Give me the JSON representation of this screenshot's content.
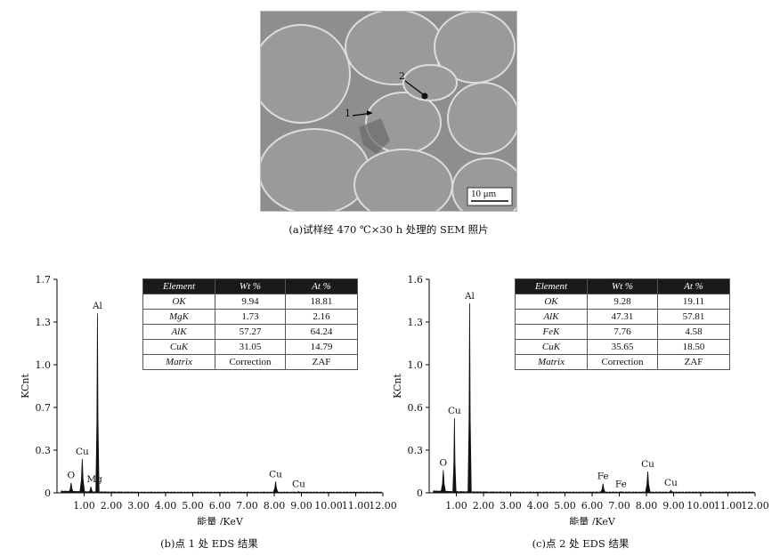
{
  "sem": {
    "scale_bar": "10 μm",
    "marker_1": "1",
    "marker_2": "2",
    "caption": "(a)试样经 470 ℃×30 h 处理的 SEM 照片"
  },
  "chart_data": [
    {
      "type": "line",
      "panel": "b",
      "caption": "(b)点 1 处 EDS 结果",
      "xlabel": "能量 /KeV",
      "ylabel": "KCnt",
      "xlim": [
        0,
        12
      ],
      "ylim": [
        0,
        1.7
      ],
      "xticks": [
        "1.00",
        "2.00",
        "3.00",
        "4.00",
        "5.00",
        "6.00",
        "7.00",
        "8.00",
        "9.00",
        "10.00",
        "11.00",
        "12.00"
      ],
      "yticks": [
        "0",
        "0.3",
        "0.7",
        "1.0",
        "1.3",
        "1.7"
      ],
      "peaks": [
        {
          "label": "O",
          "x": 0.52,
          "y": 0.08
        },
        {
          "label": "Cu",
          "x": 0.93,
          "y": 0.27
        },
        {
          "label": "Mg",
          "x": 1.25,
          "y": 0.05
        },
        {
          "label": "Al",
          "x": 1.49,
          "y": 1.43
        },
        {
          "label": "Cu",
          "x": 8.05,
          "y": 0.09
        },
        {
          "label": "Cu",
          "x": 8.9,
          "y": 0.01
        }
      ],
      "table": {
        "headers": [
          "Element",
          "Wt %",
          "At %"
        ],
        "rows": [
          [
            "OK",
            "9.94",
            "18.81"
          ],
          [
            "MgK",
            "1.73",
            "2.16"
          ],
          [
            "AlK",
            "57.27",
            "64.24"
          ],
          [
            "CuK",
            "31.05",
            "14.79"
          ],
          [
            "Matrix",
            "Correction",
            "ZAF"
          ]
        ]
      }
    },
    {
      "type": "line",
      "panel": "c",
      "caption": "(c)点 2 处 EDS 结果",
      "xlabel": "能量 /KeV",
      "ylabel": "KCnt",
      "xlim": [
        0,
        12
      ],
      "ylim": [
        0,
        1.6
      ],
      "xticks": [
        "1.00",
        "2.00",
        "3.00",
        "4.00",
        "5.00",
        "6.00",
        "7.00",
        "8.00",
        "9.00",
        "10.00",
        "11.00",
        "12.00"
      ],
      "yticks": [
        "0",
        "0.3",
        "0.6",
        "1.0",
        "1.3",
        "1.6"
      ],
      "peaks": [
        {
          "label": "O",
          "x": 0.52,
          "y": 0.17
        },
        {
          "label": "Cu",
          "x": 0.93,
          "y": 0.56
        },
        {
          "label": "Al",
          "x": 1.49,
          "y": 1.42
        },
        {
          "label": "Fe",
          "x": 6.4,
          "y": 0.07
        },
        {
          "label": "Fe",
          "x": 7.06,
          "y": 0.01
        },
        {
          "label": "Cu",
          "x": 8.05,
          "y": 0.16
        },
        {
          "label": "Cu",
          "x": 8.9,
          "y": 0.02
        }
      ],
      "table": {
        "headers": [
          "Element",
          "Wt %",
          "At %"
        ],
        "rows": [
          [
            "OK",
            "9.28",
            "19.11"
          ],
          [
            "AlK",
            "47.31",
            "57.81"
          ],
          [
            "FeK",
            "7.76",
            "4.58"
          ],
          [
            "CuK",
            "35.65",
            "18.50"
          ],
          [
            "Matrix",
            "Correction",
            "ZAF"
          ]
        ]
      }
    }
  ]
}
